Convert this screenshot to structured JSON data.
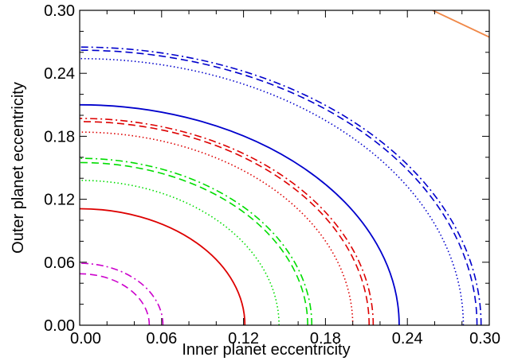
{
  "chart_data": {
    "type": "line",
    "title": "",
    "xlabel": "Inner planet eccentricity",
    "ylabel": "Outer planet eccentricity",
    "xlim": [
      0,
      0.3
    ],
    "ylim": [
      0,
      0.3
    ],
    "xticks": [
      "0.00",
      "0.06",
      "0.12",
      "0.18",
      "0.24",
      "0.30"
    ],
    "yticks": [
      "0.00",
      "0.06",
      "0.12",
      "0.18",
      "0.24",
      "0.30"
    ],
    "grid": false,
    "legend": "none",
    "series": [
      {
        "color": "#cc00cc",
        "style": "dashdot",
        "rx": 0.061,
        "ry": 0.059
      },
      {
        "color": "#cc00cc",
        "style": "dashed",
        "rx": 0.051,
        "ry": 0.049
      },
      {
        "color": "#dd0000",
        "style": "solid",
        "rx": 0.121,
        "ry": 0.111
      },
      {
        "color": "#00dd00",
        "style": "dashdot",
        "rx": 0.17,
        "ry": 0.159
      },
      {
        "color": "#00dd00",
        "style": "dashed",
        "rx": 0.167,
        "ry": 0.155
      },
      {
        "color": "#00dd00",
        "style": "dotted",
        "rx": 0.146,
        "ry": 0.138
      },
      {
        "color": "#dd0000",
        "style": "dashdot",
        "rx": 0.215,
        "ry": 0.197
      },
      {
        "color": "#dd0000",
        "style": "dashed",
        "rx": 0.212,
        "ry": 0.194
      },
      {
        "color": "#dd0000",
        "style": "dotted",
        "rx": 0.2,
        "ry": 0.184
      },
      {
        "color": "#0000cc",
        "style": "solid",
        "rx": 0.234,
        "ry": 0.21
      },
      {
        "color": "#0000cc",
        "style": "dashdot",
        "rx": 0.294,
        "ry": 0.265
      },
      {
        "color": "#0000cc",
        "style": "dashed",
        "rx": 0.291,
        "ry": 0.262
      },
      {
        "color": "#0000cc",
        "style": "dotted",
        "rx": 0.281,
        "ry": 0.254
      },
      {
        "color": "#f08848",
        "style": "solid",
        "x": [
          0.2585,
          0.3
        ],
        "y": [
          0.3,
          0.2745
        ]
      }
    ]
  }
}
